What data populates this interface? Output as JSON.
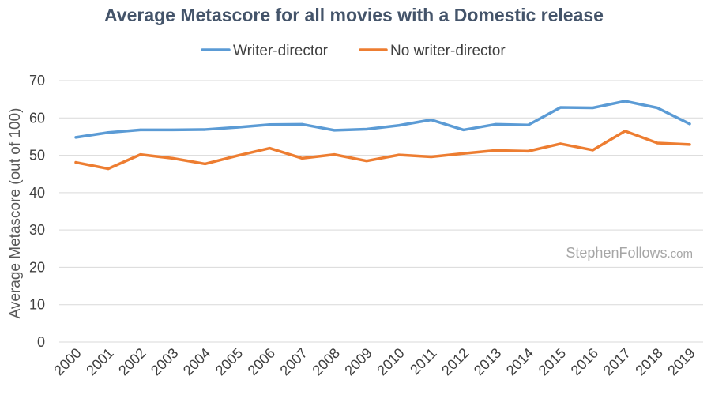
{
  "chart_data": {
    "type": "line",
    "title": "Average Metascore for all movies with a Domestic release",
    "xlabel": "",
    "ylabel": "Average Metascore (out of 100)",
    "ylim": [
      0,
      70
    ],
    "yticks": [
      0,
      10,
      20,
      30,
      40,
      50,
      60,
      70
    ],
    "grid": true,
    "legend_position": "top",
    "categories": [
      "2000",
      "2001",
      "2002",
      "2003",
      "2004",
      "2005",
      "2006",
      "2007",
      "2008",
      "2009",
      "2010",
      "2011",
      "2012",
      "2013",
      "2014",
      "2015",
      "2016",
      "2017",
      "2018",
      "2019"
    ],
    "series": [
      {
        "name": "Writer-director",
        "color": "#5b9bd5",
        "values": [
          54.8,
          56.1,
          56.8,
          56.8,
          56.9,
          57.5,
          58.2,
          58.3,
          56.7,
          57.0,
          58.0,
          59.5,
          56.8,
          58.3,
          58.1,
          62.8,
          62.7,
          64.5,
          62.7,
          58.4
        ]
      },
      {
        "name": "No writer-director",
        "color": "#ed7d31",
        "values": [
          48.1,
          46.4,
          50.2,
          49.2,
          47.7,
          49.9,
          51.9,
          49.2,
          50.2,
          48.5,
          50.1,
          49.6,
          50.5,
          51.3,
          51.1,
          53.1,
          51.4,
          56.5,
          53.3,
          52.9
        ]
      }
    ]
  },
  "watermark": {
    "main": "StephenFollows",
    "suffix": ".com"
  }
}
